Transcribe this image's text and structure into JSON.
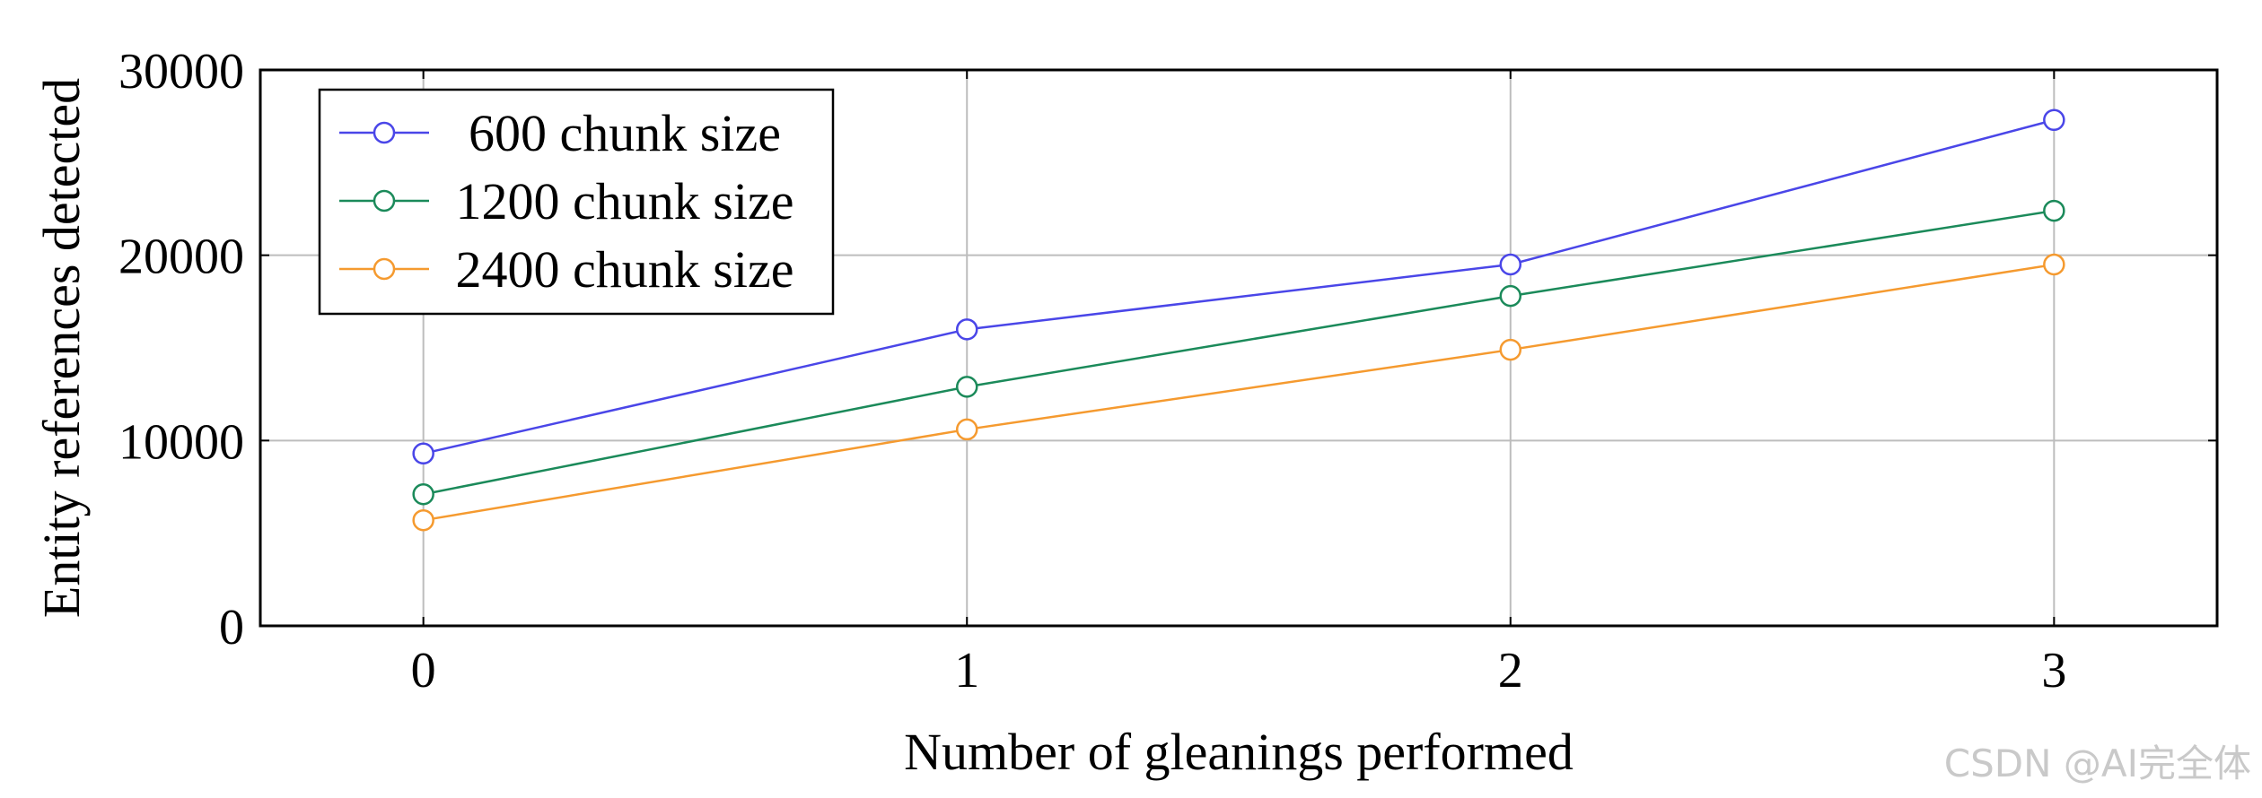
{
  "chart_data": {
    "type": "line",
    "x": [
      0,
      1,
      2,
      3
    ],
    "xlabel": "Number of gleanings performed",
    "ylabel": "Entity references detected",
    "xlim": [
      -0.3,
      3.3
    ],
    "ylim": [
      0,
      30000
    ],
    "xticks": [
      "0",
      "1",
      "2",
      "3"
    ],
    "yticks": [
      "0",
      "10000",
      "20000",
      "30000"
    ],
    "grid": true,
    "legend_position": "top-left",
    "marker": "open-circle",
    "series": [
      {
        "name": "600 chunk size",
        "color": "#4a46e8",
        "values": [
          9300,
          16000,
          19500,
          27300
        ]
      },
      {
        "name": "1200 chunk size",
        "color": "#1b8a5a",
        "values": [
          7100,
          12900,
          17800,
          22400
        ]
      },
      {
        "name": "2400 chunk size",
        "color": "#f59a2f",
        "values": [
          5700,
          10600,
          14900,
          19500
        ]
      }
    ]
  },
  "watermark": "CSDN @AI完全体"
}
